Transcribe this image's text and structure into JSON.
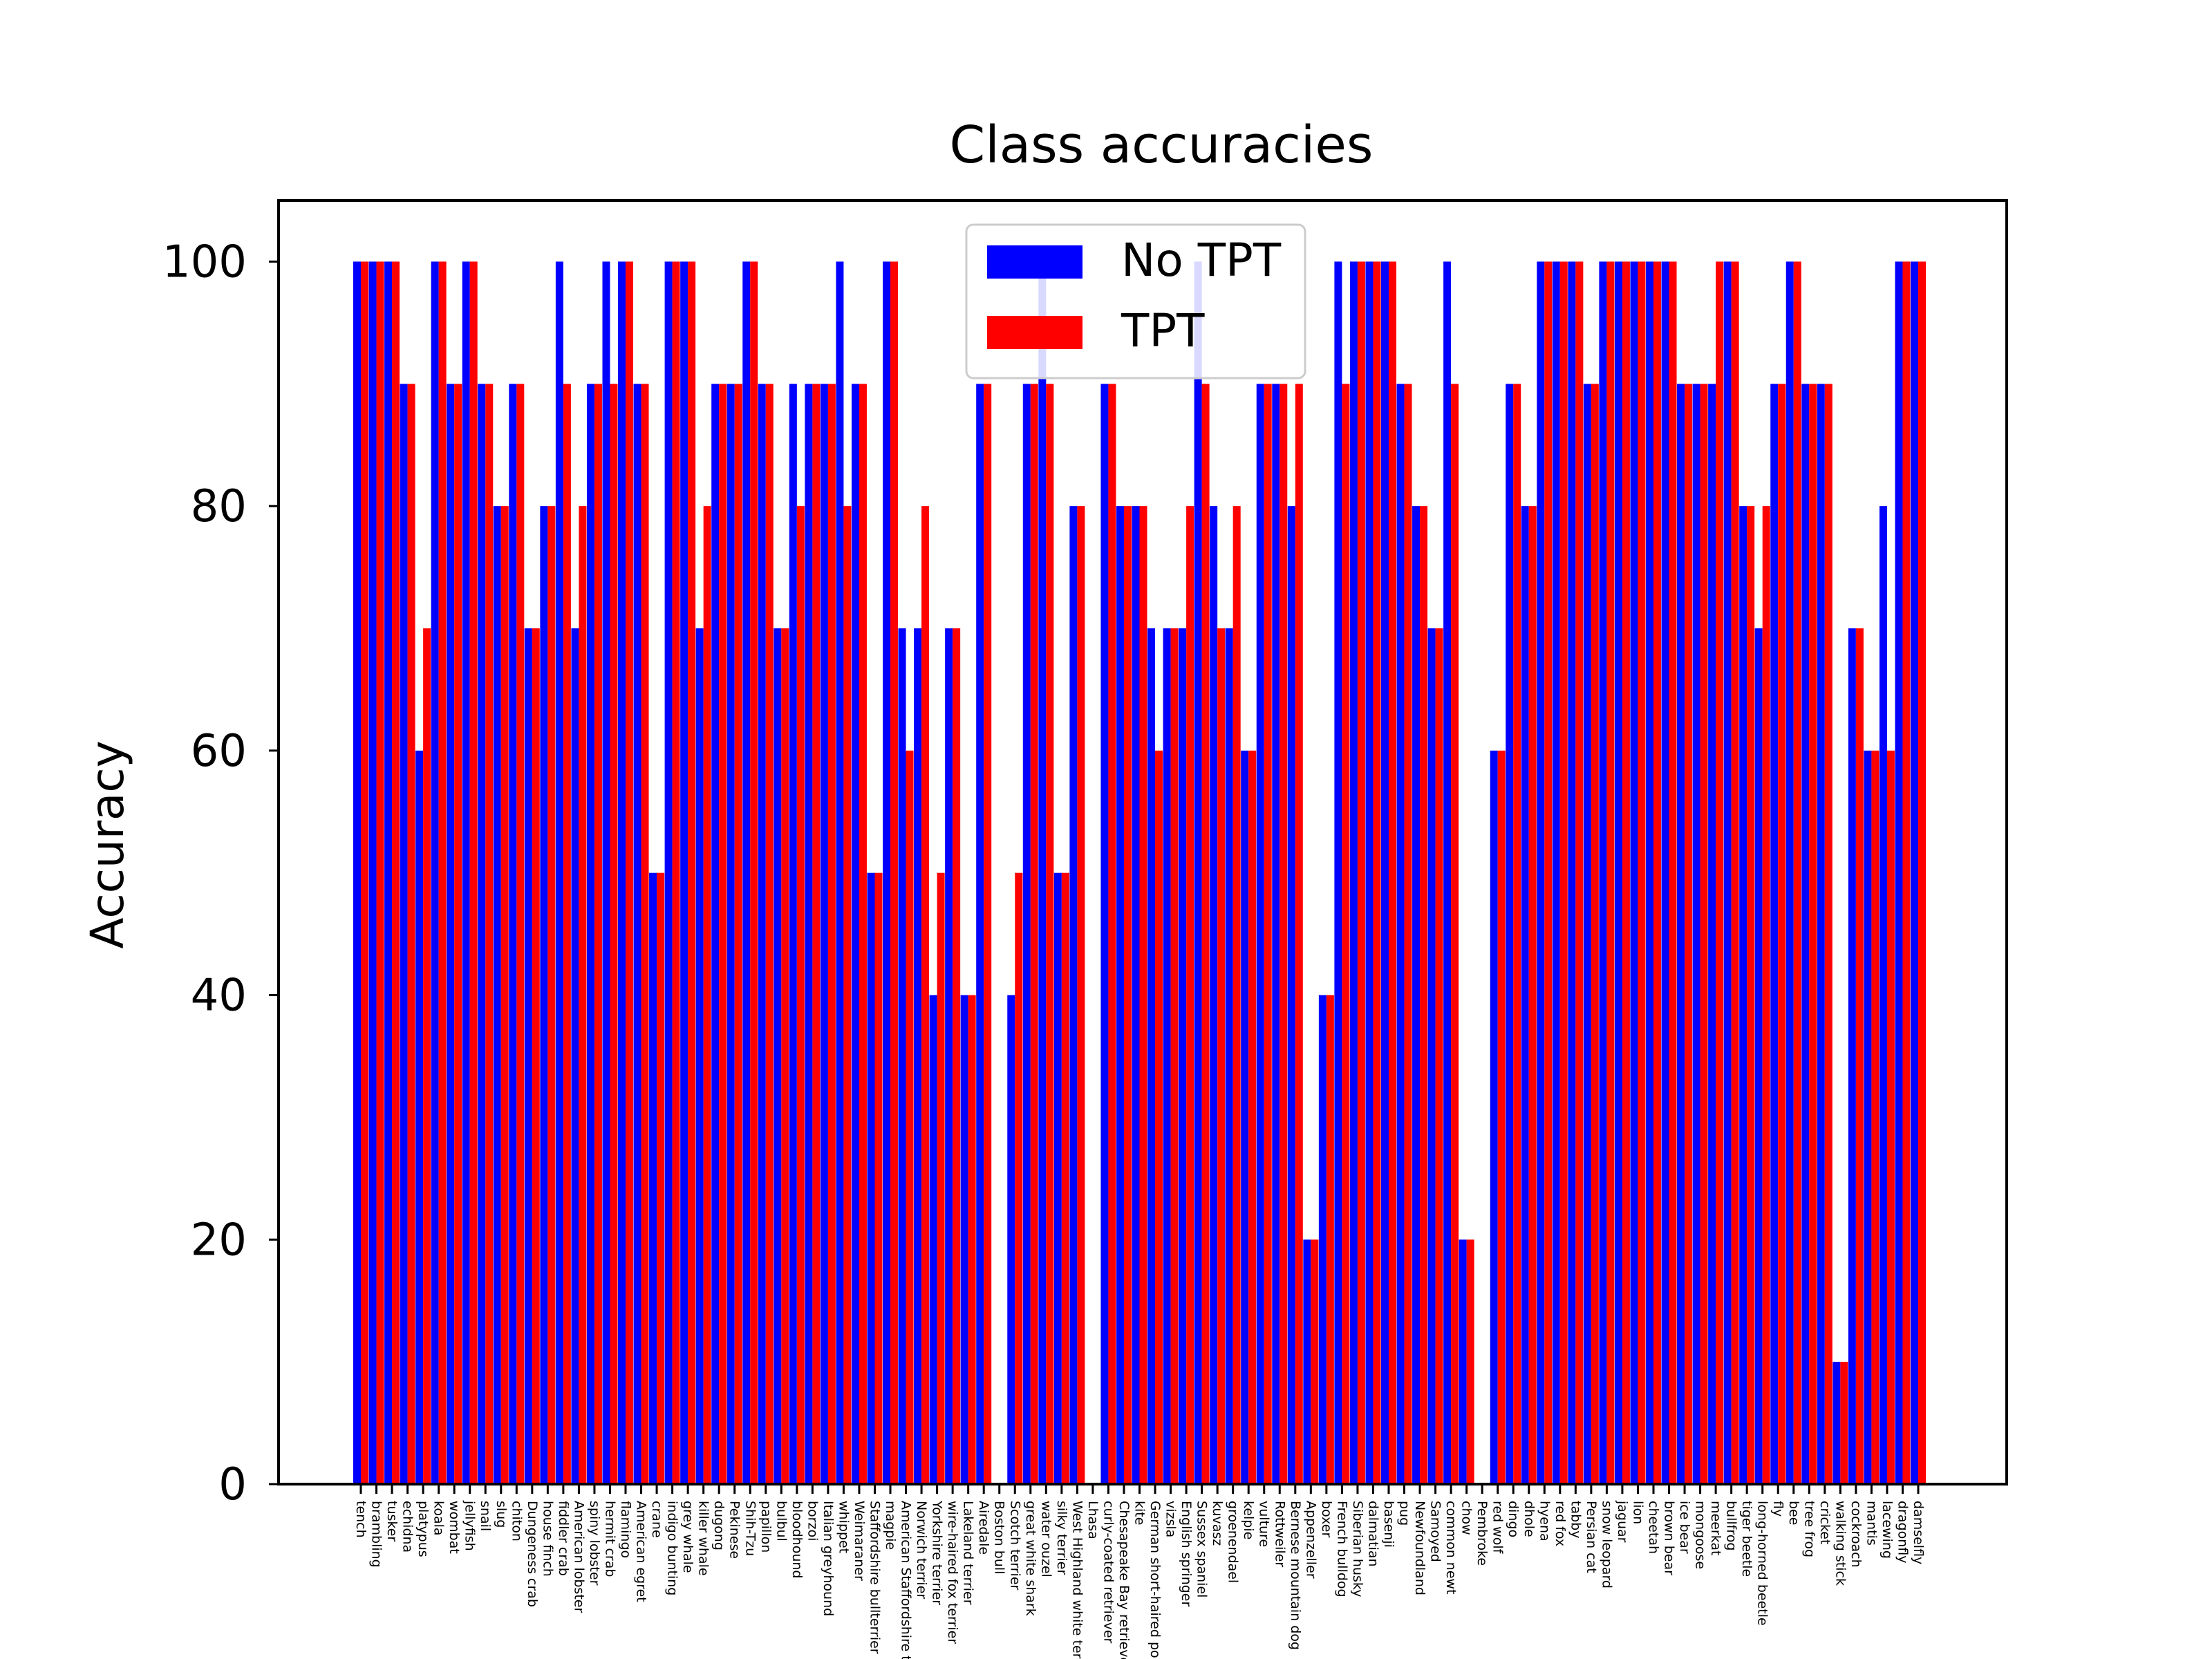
{
  "chart_data": {
    "type": "bar",
    "title": "Class accuracies",
    "xlabel": "",
    "ylabel": "Accuracy",
    "ylim": [
      0,
      105
    ],
    "yticks": [
      0,
      20,
      40,
      60,
      80,
      100
    ],
    "grid": false,
    "legend_position": "top-center",
    "categories": [
      "tench",
      "brambling",
      "tusker",
      "echidna",
      "platypus",
      "koala",
      "wombat",
      "jellyfish",
      "snail",
      "slug",
      "chiton",
      "Dungeness crab",
      "house finch",
      "fiddler crab",
      "American lobster",
      "spiny lobster",
      "hermit crab",
      "flamingo",
      "American egret",
      "crane",
      "indigo bunting",
      "grey whale",
      "killer whale",
      "dugong",
      "Pekinese",
      "Shih-Tzu",
      "papillon",
      "bulbul",
      "bloodhound",
      "borzoi",
      "Italian greyhound",
      "whippet",
      "Weimaraner",
      "Staffordshire bullterrier",
      "magpie",
      "American Staffordshire terrier",
      "Norwich terrier",
      "Yorkshire terrier",
      "wire-haired fox terrier",
      "Lakeland terrier",
      "Airedale",
      "Boston bull",
      "Scotch terrier",
      "great white shark",
      "water ouzel",
      "silky terrier",
      "West Highland white terrier",
      "Lhasa",
      "curly-coated retriever",
      "Chesapeake Bay retriever",
      "kite",
      "German short-haired pointer",
      "vizsla",
      "English springer",
      "Sussex spaniel",
      "kuvasz",
      "groenendael",
      "kelpie",
      "vulture",
      "Rottweiler",
      "Bernese mountain dog",
      "Appenzeller",
      "boxer",
      "French bulldog",
      "Siberian husky",
      "dalmatian",
      "basenji",
      "pug",
      "Newfoundland",
      "Samoyed",
      "common newt",
      "chow",
      "Pembroke",
      "red wolf",
      "dingo",
      "dhole",
      "hyena",
      "red fox",
      "tabby",
      "Persian cat",
      "snow leopard",
      "jaguar",
      "lion",
      "cheetah",
      "brown bear",
      "ice bear",
      "mongoose",
      "meerkat",
      "bullfrog",
      "tiger beetle",
      "long-horned beetle",
      "fly",
      "bee",
      "tree frog",
      "cricket",
      "walking stick",
      "cockroach",
      "mantis",
      "lacewing",
      "dragonfly",
      "damselfly"
    ],
    "series": [
      {
        "name": "No TPT",
        "color": "#0000ff",
        "values": [
          100,
          100,
          100,
          90,
          60,
          100,
          90,
          100,
          90,
          80,
          90,
          70,
          80,
          100,
          70,
          90,
          100,
          100,
          90,
          50,
          100,
          100,
          70,
          90,
          90,
          100,
          90,
          70,
          90,
          90,
          90,
          100,
          90,
          50,
          100,
          70,
          70,
          40,
          70,
          40,
          90,
          0,
          40,
          90,
          100,
          50,
          80,
          0,
          90,
          80,
          80,
          70,
          70,
          70,
          100,
          80,
          70,
          60,
          90,
          90,
          80,
          20,
          40,
          100,
          100,
          100,
          100,
          90,
          80,
          70,
          100,
          20,
          0,
          60,
          90,
          80,
          100,
          100,
          100,
          90,
          100,
          100,
          100,
          100,
          100,
          90,
          90,
          90,
          100,
          80,
          70,
          90,
          100,
          90,
          90,
          10,
          70,
          60,
          80,
          100,
          100
        ]
      },
      {
        "name": "TPT",
        "color": "#ff0000",
        "values": [
          100,
          100,
          100,
          90,
          70,
          100,
          90,
          100,
          90,
          80,
          90,
          70,
          80,
          90,
          80,
          90,
          90,
          100,
          90,
          50,
          100,
          100,
          80,
          90,
          90,
          100,
          90,
          70,
          80,
          90,
          90,
          80,
          90,
          50,
          100,
          60,
          80,
          50,
          70,
          40,
          90,
          0,
          50,
          90,
          90,
          50,
          80,
          0,
          90,
          80,
          80,
          60,
          70,
          80,
          90,
          70,
          80,
          60,
          90,
          90,
          90,
          20,
          40,
          90,
          100,
          100,
          100,
          90,
          80,
          70,
          90,
          20,
          0,
          60,
          90,
          80,
          100,
          100,
          100,
          90,
          100,
          100,
          100,
          100,
          100,
          90,
          90,
          100,
          100,
          80,
          80,
          90,
          100,
          90,
          90,
          10,
          70,
          60,
          60,
          100,
          100
        ]
      }
    ]
  }
}
